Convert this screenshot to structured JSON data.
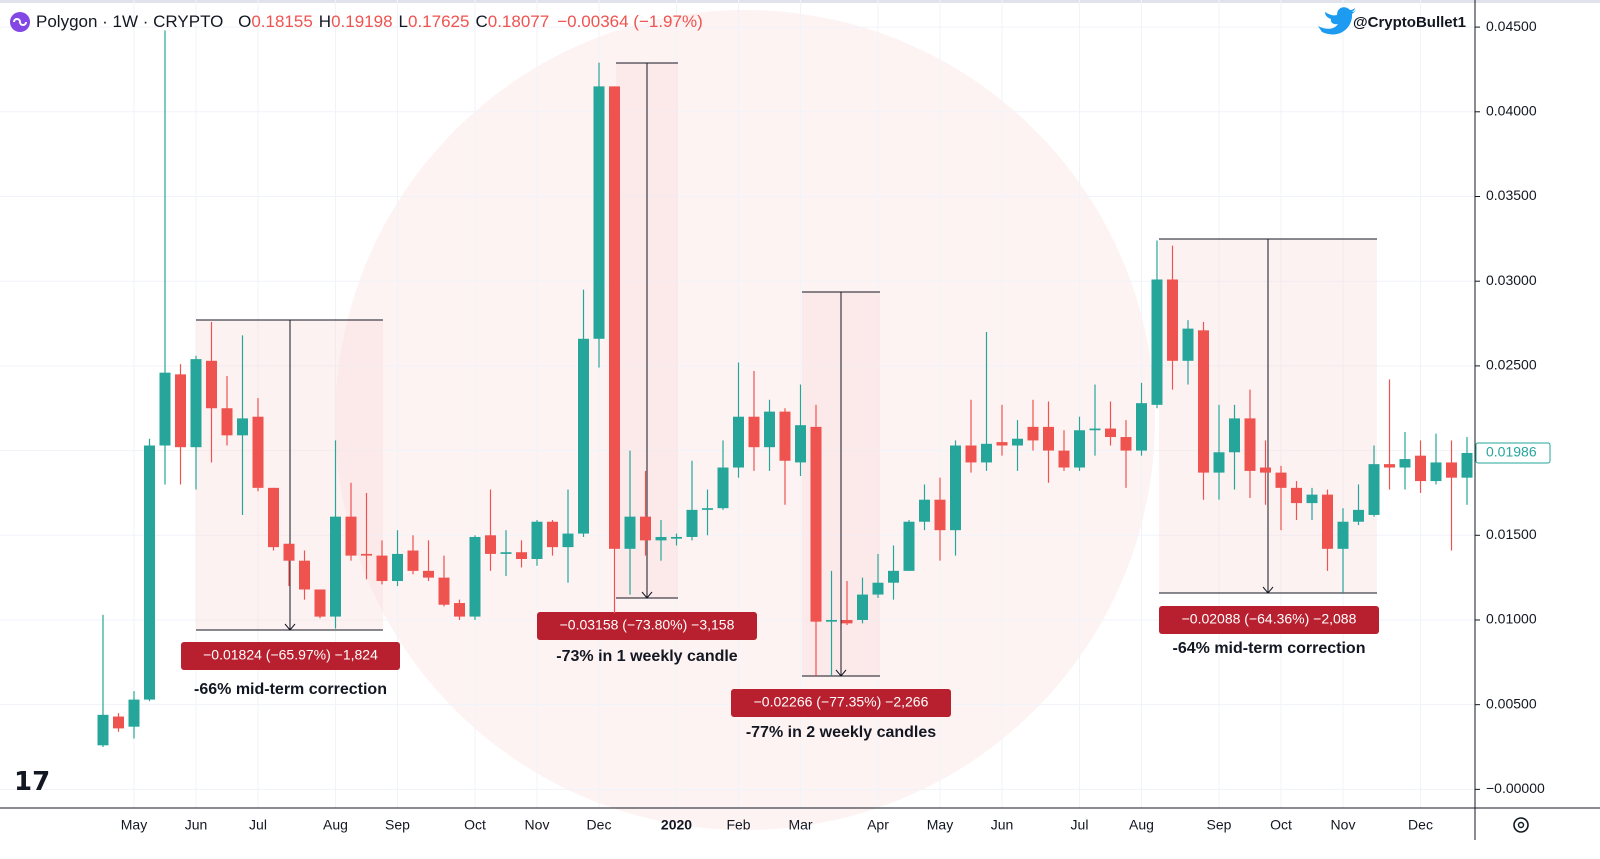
{
  "header": {
    "symbol": "Polygon · 1W · CRYPTO",
    "ohlc": [
      {
        "key": "O",
        "value": "0.18155"
      },
      {
        "key": "H",
        "value": "0.19198"
      },
      {
        "key": "L",
        "value": "0.17625"
      },
      {
        "key": "C",
        "value": "0.18077"
      }
    ],
    "change": "−0.00364 (−1.97%)"
  },
  "watermark": "@CryptoBullet1",
  "chart_data": {
    "type": "candlestick",
    "up_color": "#26a69a",
    "down_color": "#ef5350",
    "grid": true,
    "categories": [
      null,
      null,
      "May",
      null,
      null,
      null,
      "Jun",
      null,
      null,
      null,
      "Jul",
      null,
      null,
      null,
      null,
      "Aug",
      null,
      null,
      null,
      "Sep",
      null,
      null,
      null,
      null,
      "Oct",
      null,
      null,
      null,
      "Nov",
      null,
      null,
      null,
      "Dec",
      null,
      null,
      null,
      null,
      "2020",
      null,
      null,
      null,
      "Feb",
      null,
      null,
      null,
      "Mar",
      null,
      null,
      null,
      null,
      "Apr",
      null,
      null,
      null,
      "May",
      null,
      null,
      null,
      "Jun",
      null,
      null,
      null,
      null,
      "Jul",
      null,
      null,
      null,
      "Aug",
      null,
      null,
      null,
      null,
      "Sep",
      null,
      null,
      null,
      "Oct",
      null,
      null,
      null,
      "Nov",
      null,
      null,
      null,
      null,
      "Dec",
      null,
      null,
      null
    ],
    "open": [
      0.0026,
      0.0043,
      0.0037,
      0.0053,
      0.0203,
      0.0245,
      0.0202,
      0.0253,
      0.0225,
      0.0209,
      0.022,
      0.0178,
      0.0145,
      0.0135,
      0.0118,
      0.0102,
      0.0161,
      0.0139,
      0.0138,
      0.0123,
      0.0141,
      0.0129,
      0.0125,
      0.011,
      0.0102,
      0.015,
      0.0139,
      0.014,
      0.0136,
      0.0158,
      0.0143,
      0.0151,
      0.0266,
      0.0415,
      0.0142,
      0.0161,
      0.0147,
      0.0148,
      0.0149,
      0.0165,
      0.0166,
      0.019,
      0.022,
      0.0202,
      0.0223,
      0.0193,
      0.0214,
      0.0099,
      0.01,
      0.01,
      0.0115,
      0.0122,
      0.0129,
      0.0158,
      0.0171,
      0.0153,
      0.0203,
      0.0193,
      0.0205,
      0.0203,
      0.0214,
      0.0214,
      0.02,
      0.019,
      0.0212,
      0.0213,
      0.0208,
      0.02,
      0.0227,
      0.0301,
      0.0253,
      0.0271,
      0.0187,
      0.0199,
      0.0219,
      0.019,
      0.0187,
      0.0178,
      0.0169,
      0.0174,
      0.0142,
      0.0158,
      0.0162,
      0.0192,
      0.019,
      0.0197,
      0.0182,
      0.0193,
      0.0184
    ],
    "high": [
      0.0103,
      0.0045,
      0.0058,
      0.0207,
      0.0448,
      0.0251,
      0.0256,
      0.0276,
      0.0244,
      0.0268,
      0.0231,
      0.0178,
      0.0145,
      0.0141,
      0.0118,
      0.0206,
      0.0181,
      0.0175,
      0.0147,
      0.0153,
      0.015,
      0.0147,
      0.0138,
      0.0112,
      0.015,
      0.0177,
      0.0153,
      0.0147,
      0.0159,
      0.0159,
      0.0177,
      0.0295,
      0.0429,
      0.0415,
      0.02,
      0.0188,
      0.0159,
      0.0151,
      0.0194,
      0.0177,
      0.0206,
      0.0252,
      0.0247,
      0.023,
      0.0225,
      0.0239,
      0.0227,
      0.0129,
      0.0123,
      0.0125,
      0.0139,
      0.0144,
      0.0159,
      0.018,
      0.0184,
      0.0206,
      0.023,
      0.027,
      0.0227,
      0.0218,
      0.023,
      0.0229,
      0.0212,
      0.022,
      0.0239,
      0.0229,
      0.0218,
      0.024,
      0.0324,
      0.0321,
      0.0277,
      0.0276,
      0.0227,
      0.0227,
      0.0236,
      0.0206,
      0.0191,
      0.0182,
      0.0178,
      0.0177,
      0.0166,
      0.018,
      0.0203,
      0.0242,
      0.0211,
      0.0206,
      0.021,
      0.0206,
      0.0208
    ],
    "low": [
      0.0025,
      0.0034,
      0.003,
      0.0052,
      0.018,
      0.018,
      0.0177,
      0.0193,
      0.0203,
      0.0162,
      0.0176,
      0.0141,
      0.012,
      0.0112,
      0.0101,
      0.0095,
      0.0135,
      0.0124,
      0.0121,
      0.012,
      0.0127,
      0.0123,
      0.0108,
      0.01,
      0.01,
      0.0129,
      0.0126,
      0.0131,
      0.0132,
      0.0138,
      0.0122,
      0.0149,
      0.0249,
      0.0104,
      0.0115,
      0.0138,
      0.0135,
      0.0144,
      0.0147,
      0.015,
      0.0165,
      0.0184,
      0.0188,
      0.0188,
      0.0168,
      0.0185,
      0.0067,
      0.0067,
      0.0097,
      0.0098,
      0.0113,
      0.0112,
      0.0129,
      0.0153,
      0.0135,
      0.0138,
      0.0187,
      0.0188,
      0.0197,
      0.0188,
      0.02,
      0.0181,
      0.0188,
      0.0188,
      0.0197,
      0.0203,
      0.0178,
      0.0197,
      0.0225,
      0.0236,
      0.0239,
      0.0171,
      0.0171,
      0.0177,
      0.0172,
      0.0168,
      0.0153,
      0.0159,
      0.0159,
      0.0129,
      0.0116,
      0.0156,
      0.0161,
      0.0177,
      0.0177,
      0.0175,
      0.018,
      0.0141,
      0.0168
    ],
    "close": [
      0.0044,
      0.0036,
      0.0053,
      0.0203,
      0.0246,
      0.0202,
      0.0254,
      0.0225,
      0.0209,
      0.0219,
      0.0178,
      0.0143,
      0.0135,
      0.0118,
      0.0102,
      0.0161,
      0.0138,
      0.0138,
      0.0123,
      0.0139,
      0.0129,
      0.0125,
      0.0109,
      0.0102,
      0.0149,
      0.0139,
      0.014,
      0.0136,
      0.0158,
      0.0143,
      0.0151,
      0.0266,
      0.0415,
      0.0142,
      0.0161,
      0.0147,
      0.0149,
      0.0149,
      0.0165,
      0.0166,
      0.019,
      0.022,
      0.0202,
      0.0223,
      0.0194,
      0.0215,
      0.0099,
      0.01,
      0.0098,
      0.0115,
      0.0122,
      0.0129,
      0.0158,
      0.0171,
      0.0153,
      0.0203,
      0.0193,
      0.0204,
      0.0203,
      0.0207,
      0.0206,
      0.02,
      0.019,
      0.0212,
      0.0213,
      0.0208,
      0.02,
      0.0228,
      0.0301,
      0.0253,
      0.0272,
      0.0187,
      0.0199,
      0.0219,
      0.0188,
      0.0187,
      0.0178,
      0.0169,
      0.0174,
      0.0142,
      0.0158,
      0.0165,
      0.0192,
      0.019,
      0.0195,
      0.0182,
      0.0193,
      0.0184,
      0.01986
    ],
    "ylim": [
      -0.0011,
      0.0466
    ],
    "yticks": [
      {
        "value": 0,
        "label": "−0.00000"
      },
      {
        "value": 0.005,
        "label": "0.00500"
      },
      {
        "value": 0.01,
        "label": "0.01000"
      },
      {
        "value": 0.015,
        "label": "0.01500"
      },
      {
        "value": 0.02,
        "label": "0.02000"
      },
      {
        "value": 0.025,
        "label": "0.02500"
      },
      {
        "value": 0.03,
        "label": "0.03000"
      },
      {
        "value": 0.035,
        "label": "0.03500"
      },
      {
        "value": 0.04,
        "label": "0.04000"
      },
      {
        "value": 0.045,
        "label": "0.04500"
      }
    ],
    "last_price": {
      "value": 0.01986,
      "label": "0.01986"
    },
    "annotations": [
      {
        "label": "−0.01824 (−65.97%) −1,824",
        "caption": "-66% mid-term correction"
      },
      {
        "label": "−0.03158 (−73.80%) −3,158",
        "caption": "-73% in 1 weekly candle"
      },
      {
        "label": "−0.02266 (−77.35%) −2,266",
        "caption": "-77% in 2 weekly candles"
      },
      {
        "label": "−0.02088 (−64.36%) −2,088",
        "caption": "-64% mid-term correction"
      }
    ]
  }
}
